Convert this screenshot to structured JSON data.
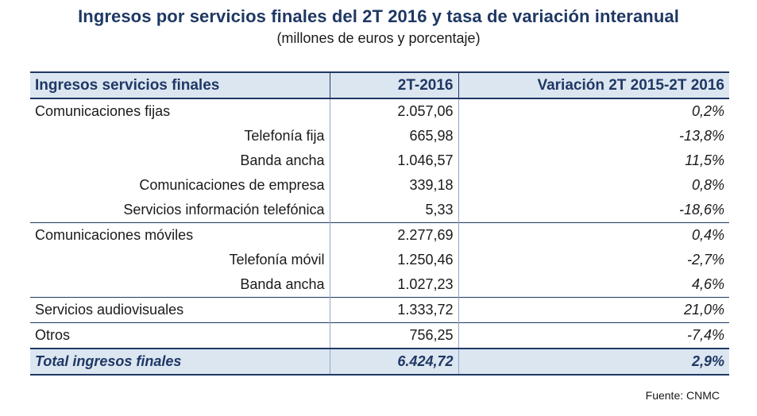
{
  "title": "Ingresos por servicios finales del 2T 2016 y tasa de variación interanual",
  "subtitle": "(millones de euros y porcentaje)",
  "table": {
    "headers": [
      "Ingresos servicios finales",
      "2T-2016",
      "Variación 2T 2015-2T 2016"
    ],
    "rows": [
      {
        "label": "Comunicaciones fijas",
        "value": "2.057,06",
        "change": "0,2%",
        "level": "main"
      },
      {
        "label": "Telefonía fija",
        "value": "665,98",
        "change": "-13,8%",
        "level": "sub"
      },
      {
        "label": "Banda ancha",
        "value": "1.046,57",
        "change": "11,5%",
        "level": "sub"
      },
      {
        "label": "Comunicaciones de empresa",
        "value": "339,18",
        "change": "0,8%",
        "level": "sub"
      },
      {
        "label": "Servicios información telefónica",
        "value": "5,33",
        "change": "-18,6%",
        "level": "sub"
      },
      {
        "label": "Comunicaciones móviles",
        "value": "2.277,69",
        "change": "0,4%",
        "level": "main"
      },
      {
        "label": "Telefonía móvil",
        "value": "1.250,46",
        "change": "-2,7%",
        "level": "sub"
      },
      {
        "label": "Banda ancha",
        "value": "1.027,23",
        "change": "4,6%",
        "level": "sub"
      },
      {
        "label": "Servicios audiovisuales",
        "value": "1.333,72",
        "change": "21,0%",
        "level": "main"
      },
      {
        "label": "Otros",
        "value": "756,25",
        "change": "-7,4%",
        "level": "main"
      }
    ],
    "total": {
      "label": "Total ingresos finales",
      "value": "6.424,72",
      "change": "2,9%"
    }
  },
  "source": "Fuente: CNMC",
  "colors": {
    "title": "#1f3864",
    "header_fill": "#dce6f1",
    "border": "#1f3864"
  }
}
